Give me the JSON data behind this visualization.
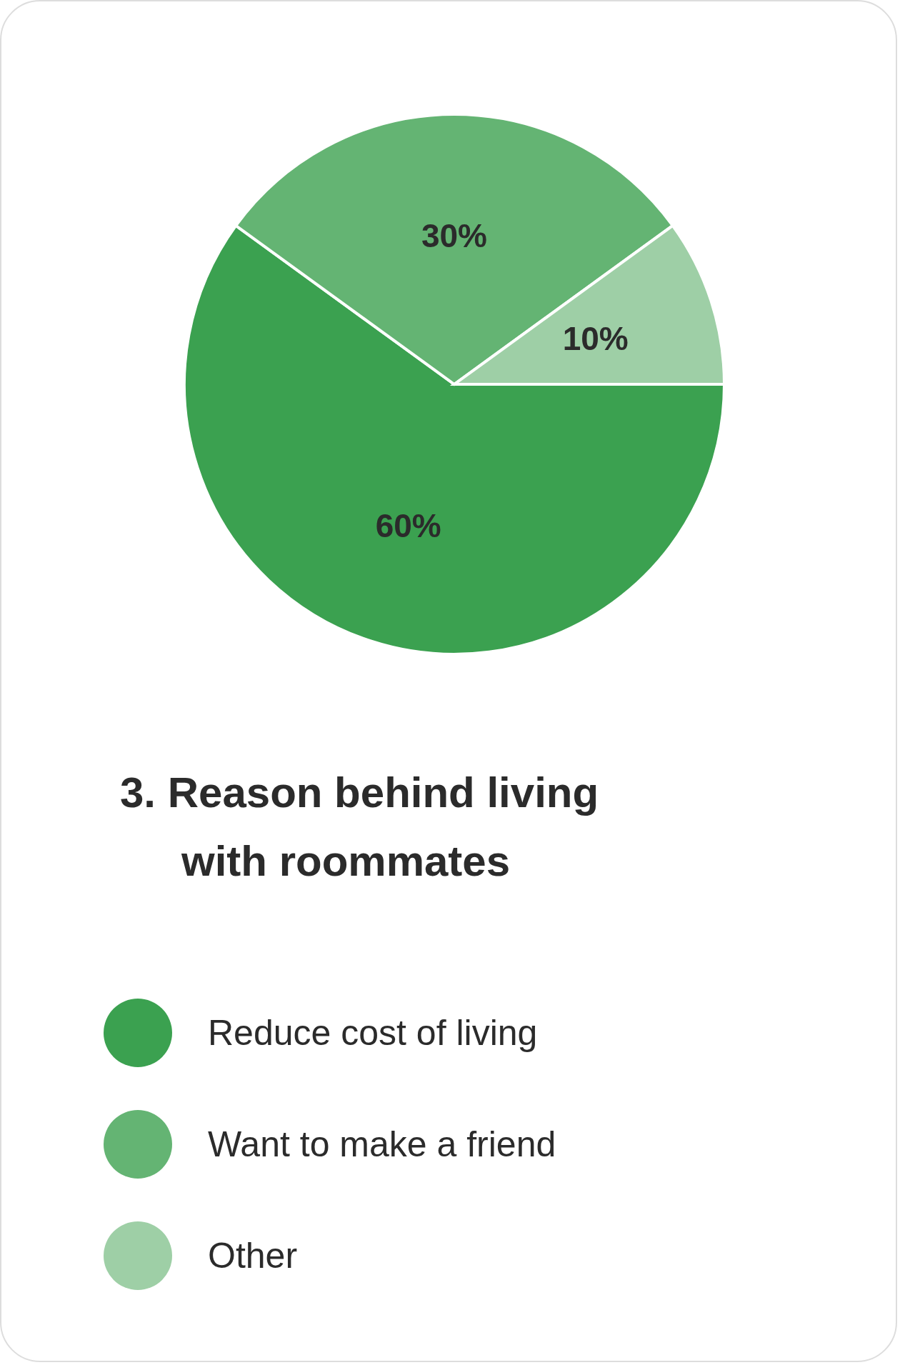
{
  "chart_data": {
    "type": "pie",
    "title": "3. Reason behind living with roommates",
    "categories": [
      "Reduce cost of living",
      "Want to make a friend",
      "Other"
    ],
    "values": [
      60,
      30,
      10
    ],
    "colors": [
      "#3ba150",
      "#64b473",
      "#9ecfa6"
    ],
    "value_labels": [
      "60%",
      "30%",
      "10%"
    ],
    "legend": "bottom"
  }
}
